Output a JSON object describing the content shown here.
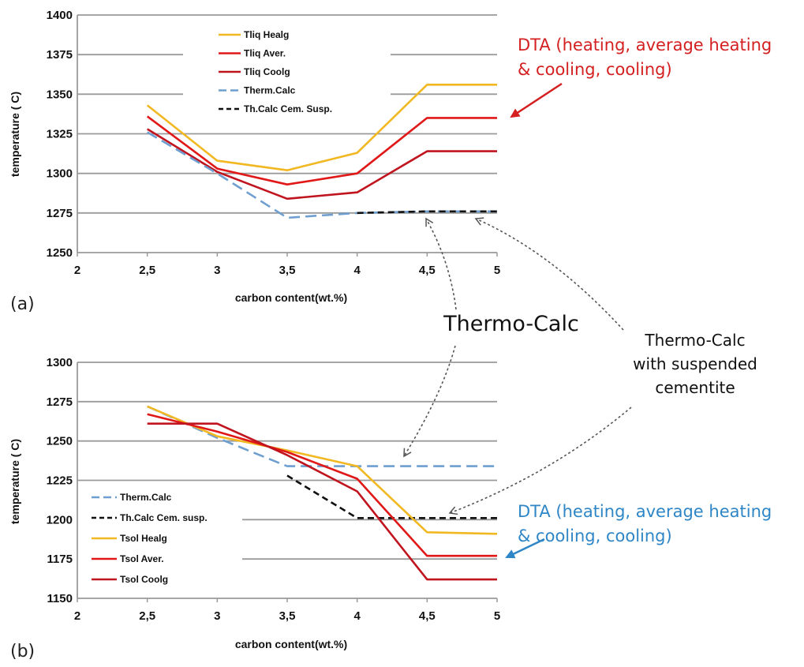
{
  "chart_data": [
    {
      "type": "line",
      "panel_label": "(a)",
      "xlabel": "carbon content(wt.%)",
      "ylabel": "temperature ( C)",
      "x_ticks": [
        "2",
        "2,5",
        "3",
        "3,5",
        "4",
        "4,5",
        "5"
      ],
      "y_ticks": [
        "1250",
        "1275",
        "1300",
        "1325",
        "1350",
        "1375",
        "1400"
      ],
      "xlim": [
        2,
        5
      ],
      "ylim": [
        1250,
        1400
      ],
      "grid": "horizontal",
      "legend": "top-center",
      "series": [
        {
          "name": "Tliq Healg",
          "color": "#f2b822",
          "dash": "",
          "x": [
            2.5,
            3,
            3.5,
            4,
            4.5,
            5
          ],
          "y": [
            1343,
            1308,
            1302,
            1313,
            1356,
            1356
          ]
        },
        {
          "name": "Tliq Aver.",
          "color": "#e01818",
          "dash": "",
          "x": [
            2.5,
            3,
            3.5,
            4,
            4.5,
            5
          ],
          "y": [
            1336,
            1303,
            1293,
            1300,
            1335,
            1335
          ]
        },
        {
          "name": "Tliq Coolg",
          "color": "#c0141e",
          "dash": "",
          "x": [
            2.5,
            3,
            3.5,
            4,
            4.5,
            5
          ],
          "y": [
            1328,
            1301,
            1284,
            1288,
            1314,
            1314
          ]
        },
        {
          "name": "Therm.Calc",
          "color": "#6f9fd0",
          "dash": "14,7",
          "x": [
            2.5,
            3,
            3.5,
            4,
            4.5,
            5
          ],
          "y": [
            1326,
            1300,
            1272,
            1275,
            1276,
            1276
          ]
        },
        {
          "name": "Th.Calc Cem. Susp.",
          "color": "#111111",
          "dash": "8,5",
          "x": [
            4,
            4.5,
            5
          ],
          "y": [
            1275,
            1276,
            1276
          ]
        }
      ]
    },
    {
      "type": "line",
      "panel_label": "(b)",
      "xlabel": "carbon content(wt.%)",
      "ylabel": "temperature ( C)",
      "x_ticks": [
        "2",
        "2,5",
        "3",
        "3,5",
        "4",
        "4,5",
        "5"
      ],
      "y_ticks": [
        "1150",
        "1175",
        "1200",
        "1225",
        "1250",
        "1275",
        "1300"
      ],
      "xlim": [
        2,
        5
      ],
      "ylim": [
        1150,
        1300
      ],
      "grid": "horizontal",
      "legend": "bottom-left",
      "series": [
        {
          "name": "Therm.Calc",
          "color": "#6f9fd0",
          "dash": "14,7",
          "x": [
            2.5,
            3,
            3.5,
            4,
            4.5,
            5
          ],
          "y": [
            1272,
            1252,
            1234,
            1234,
            1234,
            1234
          ]
        },
        {
          "name": "Th.Calc Cem. susp.",
          "color": "#111111",
          "dash": "8,5",
          "x": [
            3.5,
            4,
            4.5,
            5
          ],
          "y": [
            1228,
            1201,
            1201,
            1201
          ]
        },
        {
          "name": "Tsol Healg",
          "color": "#f2b822",
          "dash": "",
          "x": [
            2.5,
            3,
            3.5,
            4,
            4.5,
            5
          ],
          "y": [
            1272,
            1253,
            1244,
            1234,
            1192,
            1191
          ]
        },
        {
          "name": "Tsol Aver.",
          "color": "#e01818",
          "dash": "",
          "x": [
            2.5,
            3,
            3.5,
            4,
            4.5,
            5
          ],
          "y": [
            1267,
            1256,
            1243,
            1226,
            1177,
            1177
          ]
        },
        {
          "name": "Tsol Coolg",
          "color": "#c0141e",
          "dash": "",
          "x": [
            2.5,
            3,
            3.5,
            4,
            4.5,
            5
          ],
          "y": [
            1261,
            1261,
            1241,
            1218,
            1162,
            1162
          ]
        }
      ]
    }
  ],
  "annotations": {
    "dta_top": [
      "DTA (heating, average heating",
      "& cooling, cooling)"
    ],
    "dta_top_color": "#d42020",
    "dta_bottom": [
      "DTA (heating, average heating",
      "& cooling, cooling)"
    ],
    "dta_bottom_color": "#2f86c6",
    "thermo_calc": "Thermo-Calc",
    "thermo_calc_susp": [
      "Thermo-Calc",
      "with suspended",
      "cementite"
    ]
  }
}
